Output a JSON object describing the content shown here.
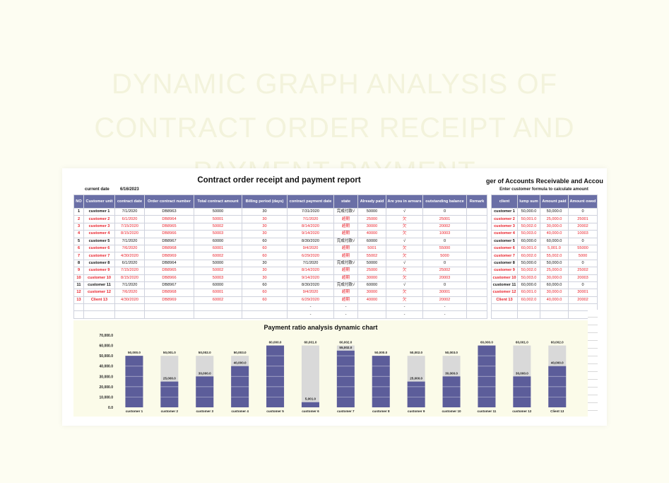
{
  "background_title": "DYNAMIC GRAPH ANALYSIS OF CONTRACT ORDER RECEIPT AND PAYMENT PAYMENT",
  "report": {
    "title": "Contract order receipt and payment report",
    "current_date_label": "current date",
    "current_date_value": "6/16/2023",
    "headers": [
      "NO",
      "Customer unit",
      "contract date",
      "Order contract number",
      "Total contract amount",
      "Billing period (days)",
      "contract payment date",
      "state",
      "Already paid",
      "Are you in arrears",
      "outstanding balance",
      "Remark"
    ],
    "rows": [
      {
        "no": "1",
        "unit": "customer 1",
        "date": "7/1/2020",
        "number": "DB8963",
        "total": "50000",
        "period": "30",
        "pay_date": "7/31/2020",
        "state": "完成付款√",
        "paid": "50000",
        "arrears": "√",
        "balance": "0",
        "color": "black"
      },
      {
        "no": "2",
        "unit": "customer 2",
        "date": "6/1/2020",
        "number": "DB8964",
        "total": "50001",
        "period": "30",
        "pay_date": "7/1/2020",
        "state": "超期",
        "paid": "25000",
        "arrears": "欠",
        "balance": "25001",
        "color": "red"
      },
      {
        "no": "3",
        "unit": "customer 3",
        "date": "7/15/2020",
        "number": "DB8965",
        "total": "50002",
        "period": "30",
        "pay_date": "8/14/2020",
        "state": "超期",
        "paid": "30000",
        "arrears": "欠",
        "balance": "20002",
        "color": "red"
      },
      {
        "no": "4",
        "unit": "customer 4",
        "date": "8/15/2020",
        "number": "DB8966",
        "total": "50003",
        "period": "30",
        "pay_date": "9/14/2020",
        "state": "超期",
        "paid": "40000",
        "arrears": "欠",
        "balance": "10003",
        "color": "red"
      },
      {
        "no": "5",
        "unit": "customer 5",
        "date": "7/1/2020",
        "number": "DB8967",
        "total": "60000",
        "period": "60",
        "pay_date": "8/30/2020",
        "state": "完成付款√",
        "paid": "60000",
        "arrears": "√",
        "balance": "0",
        "color": "black"
      },
      {
        "no": "6",
        "unit": "customer 6",
        "date": "7/6/2020",
        "number": "DB8968",
        "total": "60001",
        "period": "60",
        "pay_date": "9/4/2020",
        "state": "超期",
        "paid": "5001",
        "arrears": "欠",
        "balance": "55000",
        "color": "red"
      },
      {
        "no": "7",
        "unit": "customer 7",
        "date": "4/30/2020",
        "number": "DB8969",
        "total": "60002",
        "period": "60",
        "pay_date": "6/29/2020",
        "state": "超期",
        "paid": "55002",
        "arrears": "欠",
        "balance": "5000",
        "color": "red"
      },
      {
        "no": "8",
        "unit": "customer 8",
        "date": "6/1/2020",
        "number": "DB8964",
        "total": "50000",
        "period": "30",
        "pay_date": "7/1/2020",
        "state": "完成付款√",
        "paid": "50000",
        "arrears": "√",
        "balance": "0",
        "color": "black"
      },
      {
        "no": "9",
        "unit": "customer 9",
        "date": "7/15/2020",
        "number": "DB8965",
        "total": "50002",
        "period": "30",
        "pay_date": "8/14/2020",
        "state": "超期",
        "paid": "25000",
        "arrears": "欠",
        "balance": "25002",
        "color": "red"
      },
      {
        "no": "10",
        "unit": "customer 10",
        "date": "8/15/2020",
        "number": "DB8966",
        "total": "50003",
        "period": "30",
        "pay_date": "9/14/2020",
        "state": "超期",
        "paid": "30000",
        "arrears": "欠",
        "balance": "20003",
        "color": "red"
      },
      {
        "no": "11",
        "unit": "customer 11",
        "date": "7/1/2020",
        "number": "DB8967",
        "total": "60000",
        "period": "60",
        "pay_date": "8/30/2020",
        "state": "完成付款√",
        "paid": "60000",
        "arrears": "√",
        "balance": "0",
        "color": "black"
      },
      {
        "no": "12",
        "unit": "customer 12",
        "date": "7/6/2020",
        "number": "DB8968",
        "total": "60001",
        "period": "60",
        "pay_date": "9/4/2020",
        "state": "超期",
        "paid": "30000",
        "arrears": "欠",
        "balance": "30001",
        "color": "red"
      },
      {
        "no": "13",
        "unit": "Client 13",
        "date": "4/30/2020",
        "number": "DB8969",
        "total": "60002",
        "period": "60",
        "pay_date": "6/29/2020",
        "state": "超期",
        "paid": "40000",
        "arrears": "欠",
        "balance": "20002",
        "color": "red"
      },
      {
        "no": "",
        "unit": "",
        "date": "",
        "number": "",
        "total": "",
        "period": "",
        "pay_date": "-",
        "state": "-",
        "paid": "",
        "arrears": "-",
        "balance": "-",
        "color": "black"
      },
      {
        "no": "",
        "unit": "",
        "date": "",
        "number": "",
        "total": "",
        "period": "",
        "pay_date": "-",
        "state": "-",
        "paid": "",
        "arrears": "-",
        "balance": "-",
        "color": "black"
      }
    ]
  },
  "ledger": {
    "title": "ger of Accounts Receivable and Accou",
    "subtitle": "Enter customer formula to calculate amount",
    "headers": [
      "client",
      "lump sum",
      "Amount paid",
      "Amount owed"
    ],
    "rows": [
      {
        "client": "customer 1",
        "sum": "50,000.0",
        "paid": "50,000.0",
        "owed": "0",
        "color": "black"
      },
      {
        "client": "customer 2",
        "sum": "50,001.0",
        "paid": "25,000.0",
        "owed": "25001",
        "color": "red"
      },
      {
        "client": "customer 3",
        "sum": "50,002.0",
        "paid": "30,000.0",
        "owed": "20002",
        "color": "red"
      },
      {
        "client": "customer 4",
        "sum": "50,003.0",
        "paid": "40,000.0",
        "owed": "10003",
        "color": "red"
      },
      {
        "client": "customer 5",
        "sum": "60,000.0",
        "paid": "60,000.0",
        "owed": "0",
        "color": "black"
      },
      {
        "client": "customer 6",
        "sum": "60,001.0",
        "paid": "5,001.0",
        "owed": "55000",
        "color": "red"
      },
      {
        "client": "customer 7",
        "sum": "60,002.0",
        "paid": "55,002.0",
        "owed": "5000",
        "color": "red"
      },
      {
        "client": "customer 8",
        "sum": "50,000.0",
        "paid": "50,000.0",
        "owed": "0",
        "color": "black"
      },
      {
        "client": "customer 9",
        "sum": "50,002.0",
        "paid": "25,000.0",
        "owed": "25002",
        "color": "red"
      },
      {
        "client": "customer 10",
        "sum": "50,003.0",
        "paid": "30,000.0",
        "owed": "20003",
        "color": "red"
      },
      {
        "client": "customer 11",
        "sum": "60,000.0",
        "paid": "60,000.0",
        "owed": "0",
        "color": "black"
      },
      {
        "client": "customer 12",
        "sum": "60,001.0",
        "paid": "30,000.0",
        "owed": "30001",
        "color": "red"
      },
      {
        "client": "Client 13",
        "sum": "60,002.0",
        "paid": "40,000.0",
        "owed": "20002",
        "color": "red"
      },
      {
        "client": "",
        "sum": "",
        "paid": "",
        "owed": "",
        "color": "black"
      },
      {
        "client": "",
        "sum": "",
        "paid": "",
        "owed": "",
        "color": "black"
      }
    ]
  },
  "chart_data": {
    "type": "bar",
    "title": "Payment ratio analysis dynamic chart",
    "categories": [
      "customer 1",
      "customer 2",
      "customer 3",
      "customer 4",
      "customer 5",
      "customer 6",
      "customer 7",
      "customer 8",
      "customer 9",
      "customer 10",
      "customer 11",
      "customer 12",
      "Client 13"
    ],
    "series": [
      {
        "values": [
          50000,
          50001,
          50002,
          50003,
          60000,
          60001,
          60002,
          50000,
          50002,
          50003,
          60000,
          60001,
          60002
        ],
        "color": "#d9d9d9"
      },
      {
        "values": [
          50000,
          25000,
          30000,
          40000,
          60000,
          5001,
          55002,
          50000,
          25000,
          30000,
          60000,
          30000,
          40000
        ],
        "color": "#5c5d9a"
      }
    ],
    "total_labels": [
      "50,000.0",
      "50,001.0",
      "50,002.0",
      "50,003.0",
      "60,000.0",
      "60,001.0",
      "60,002.0",
      "50,000.0",
      "50,002.0",
      "50,003.0",
      "60,000.0",
      "60,001.0",
      "60,002.0"
    ],
    "paid_labels": [
      "",
      "25,000.0",
      "30,000.0",
      "40,000.0",
      "",
      "5,001.0",
      "55,002.0",
      "",
      "25,000.0",
      "30,000.0",
      "",
      "30,000.0",
      "40,000.0"
    ],
    "yticks": [
      "0.0",
      "10,000.0",
      "20,000.0",
      "30,000.0",
      "40,000.0",
      "50,000.0",
      "60,000.0",
      "70,000.0"
    ],
    "ylim": [
      0,
      70000
    ],
    "grid": false,
    "legend": "none"
  }
}
